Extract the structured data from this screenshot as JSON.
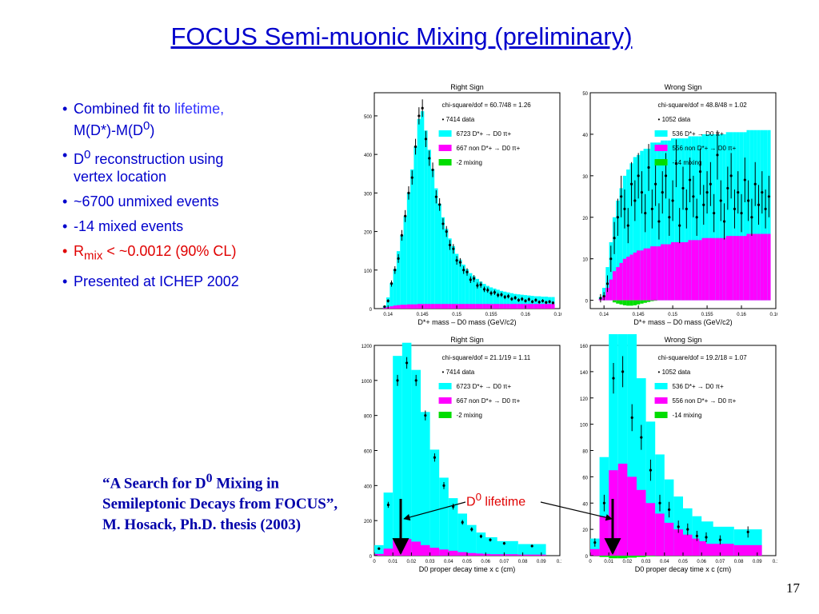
{
  "slide": {
    "title": "FOCUS Semi-muonic Mixing (preliminary)",
    "page_number": "17",
    "bullets": [
      {
        "pre": "Combined fit to ",
        "highlight": "lifetime,",
        "post": "",
        "line2": "M(D*)-M(D0)"
      },
      {
        "pre": "D0 reconstruction using",
        "highlight": "",
        "post": "",
        "line2": "vertex location"
      },
      {
        "pre": "~6700 unmixed events",
        "highlight": "",
        "post": "",
        "line2": ""
      },
      {
        "pre": "-14 mixed events",
        "highlight": "",
        "post": "",
        "line2": ""
      },
      {
        "pre": "Rmix < ~0.0012 (90% CL)",
        "highlight": "",
        "post": "",
        "line2": "",
        "red": true
      },
      {
        "pre": "Presented at ICHEP 2002",
        "highlight": "",
        "post": "",
        "line2": ""
      }
    ],
    "citation": "“A Search for D0 Mixing in Semileptonic Decays from FOCUS”, M. Hosack, Ph.D. thesis (2003)",
    "arrow_label": "D0 lifetime",
    "colors": {
      "title": "#0000cc",
      "text": "#0000cc",
      "highlight": "#3333ff",
      "red": "#e00000",
      "cyan": "#00ffff",
      "magenta": "#ff00ff",
      "green": "#00dd00"
    }
  },
  "chart_data": [
    {
      "type": "bar",
      "title": "Right Sign",
      "xlabel": "D*+ mass – D0 mass (GeV/c2)",
      "xlim": [
        0.138,
        0.165
      ],
      "ylim": [
        0,
        560
      ],
      "xticks": [
        "0.14",
        "0.145",
        "0.15",
        "0.155",
        "0.16",
        "0.165"
      ],
      "xtick_values": [
        0.14,
        0.145,
        0.15,
        0.155,
        0.16,
        0.165
      ],
      "yticks": [
        "0",
        "100",
        "200",
        "300",
        "400",
        "500"
      ],
      "ytick_values": [
        0,
        100,
        200,
        300,
        400,
        500
      ],
      "fit_label": "chi-square/dof = 60.7/48 = 1.26",
      "legend": [
        "• 7414 data",
        "6723 D*+ → D0 π+",
        "667 non D*+ → D0 π+",
        "-2 mixing"
      ],
      "x": [
        0.1395,
        0.14,
        0.1405,
        0.141,
        0.1415,
        0.142,
        0.1425,
        0.143,
        0.1435,
        0.144,
        0.1445,
        0.145,
        0.1455,
        0.146,
        0.1465,
        0.147,
        0.1475,
        0.148,
        0.1485,
        0.149,
        0.1495,
        0.15,
        0.1505,
        0.151,
        0.1515,
        0.152,
        0.1525,
        0.153,
        0.1535,
        0.154,
        0.1545,
        0.155,
        0.1555,
        0.156,
        0.1565,
        0.157,
        0.1575,
        0.158,
        0.1585,
        0.159,
        0.1595,
        0.16,
        0.1605,
        0.161,
        0.1615,
        0.162,
        0.1625,
        0.163,
        0.1635,
        0.164
      ],
      "series": [
        {
          "name": "6723 D*+ → D0 π+",
          "values": [
            5,
            25,
            60,
            95,
            140,
            180,
            230,
            290,
            350,
            410,
            480,
            500,
            450,
            400,
            350,
            300,
            260,
            225,
            195,
            170,
            150,
            130,
            115,
            102,
            90,
            80,
            72,
            65,
            58,
            52,
            47,
            43,
            40,
            37,
            34,
            32,
            30,
            28,
            26,
            25,
            24,
            23,
            22,
            21,
            20,
            20,
            19,
            19,
            18,
            18
          ]
        },
        {
          "name": "667 non D*+ → D0 π+",
          "values": [
            2,
            4,
            6,
            8,
            9,
            10,
            10,
            11,
            11,
            11,
            12,
            12,
            12,
            12,
            12,
            12,
            12,
            12,
            12,
            12,
            12,
            12,
            12,
            12,
            12,
            12,
            12,
            12,
            12,
            12,
            12,
            12,
            12,
            12,
            12,
            12,
            12,
            12,
            12,
            12,
            12,
            12,
            12,
            12,
            12,
            12,
            12,
            12,
            12,
            12
          ]
        },
        {
          "name": "7414 data",
          "values": [
            5,
            20,
            65,
            100,
            130,
            190,
            240,
            300,
            340,
            420,
            500,
            520,
            440,
            390,
            360,
            290,
            270,
            220,
            200,
            165,
            155,
            125,
            120,
            100,
            95,
            75,
            78,
            60,
            62,
            50,
            48,
            40,
            42,
            35,
            36,
            30,
            32,
            25,
            28,
            22,
            25,
            20,
            24,
            18,
            22,
            17,
            20,
            16,
            18,
            15
          ]
        }
      ]
    },
    {
      "type": "bar",
      "title": "Wrong Sign",
      "xlabel": "D*+ mass – D0 mass (GeV/c2)",
      "xlim": [
        0.138,
        0.165
      ],
      "ylim": [
        -2,
        50
      ],
      "xticks": [
        "0.14",
        "0.145",
        "0.15",
        "0.155",
        "0.16",
        "0.165"
      ],
      "xtick_values": [
        0.14,
        0.145,
        0.15,
        0.155,
        0.16,
        0.165
      ],
      "yticks": [
        "0",
        "10",
        "20",
        "30",
        "40",
        "50"
      ],
      "ytick_values": [
        0,
        10,
        20,
        30,
        40,
        50
      ],
      "fit_label": "chi-square/dof = 48.8/48 = 1.02",
      "legend": [
        "• 1052 data",
        "536 D*+ → D0 π+",
        "556 non D*+ → D0 π+",
        "-14 mixing"
      ],
      "x": [
        0.1395,
        0.14,
        0.1405,
        0.141,
        0.1415,
        0.142,
        0.1425,
        0.143,
        0.1435,
        0.144,
        0.1445,
        0.145,
        0.1455,
        0.146,
        0.1465,
        0.147,
        0.1475,
        0.148,
        0.1485,
        0.149,
        0.1495,
        0.15,
        0.1505,
        0.151,
        0.1515,
        0.152,
        0.1525,
        0.153,
        0.1535,
        0.154,
        0.1545,
        0.155,
        0.1555,
        0.156,
        0.1565,
        0.157,
        0.1575,
        0.158,
        0.1585,
        0.159,
        0.1595,
        0.16,
        0.1605,
        0.161,
        0.1615,
        0.162,
        0.1625,
        0.163,
        0.1635,
        0.164
      ],
      "series": [
        {
          "name": "536 D*+ → D0 π+",
          "values": [
            0.5,
            2,
            5,
            9,
            13,
            16,
            18,
            20,
            21,
            22,
            23,
            23,
            24,
            24,
            24,
            25,
            25,
            25,
            25,
            25,
            25,
            25,
            25,
            25,
            25,
            25,
            25,
            25,
            25,
            25,
            25,
            25,
            25,
            25,
            25,
            25,
            25,
            25,
            25,
            25,
            25,
            25,
            25,
            25,
            25,
            25,
            25,
            25,
            25,
            25
          ]
        },
        {
          "name": "556 non D*+ → D0 π+",
          "values": [
            0.3,
            1,
            3,
            5,
            7,
            8,
            9,
            10,
            10.5,
            11,
            11.5,
            12,
            12,
            12.5,
            12.5,
            13,
            13,
            13,
            13.5,
            13.5,
            13.5,
            14,
            14,
            14,
            14,
            14,
            14.5,
            14.5,
            14.5,
            14.5,
            15,
            15,
            15,
            15,
            15,
            15,
            15,
            15.5,
            15.5,
            15.5,
            15.5,
            15.5,
            15.5,
            16,
            16,
            16,
            16,
            16,
            16,
            16
          ]
        },
        {
          "name": "-14 mixing",
          "values": [
            0,
            0,
            0,
            0,
            -0.5,
            -0.8,
            -1,
            -1.2,
            -1.3,
            -1.3,
            -1.2,
            -1,
            -0.8,
            -0.6,
            -0.4,
            -0.2,
            -0.1,
            0,
            0,
            0,
            0,
            0,
            0,
            0,
            0,
            0,
            0,
            0,
            0,
            0,
            0,
            0,
            0,
            0,
            0,
            0,
            0,
            0,
            0,
            0,
            0,
            0,
            0,
            0,
            0,
            0,
            0,
            0,
            0,
            0
          ]
        },
        {
          "name": "1052 data",
          "values": [
            0.5,
            1,
            4,
            10,
            15,
            20,
            25,
            22,
            18,
            28,
            24,
            30,
            26,
            21,
            32,
            22,
            28,
            19,
            26,
            30,
            20,
            24,
            33,
            18,
            27,
            22,
            29,
            25,
            20,
            31,
            23,
            26,
            28,
            21,
            35,
            24,
            19,
            27,
            30,
            22,
            26,
            21,
            29,
            24,
            20,
            28,
            23,
            26,
            22,
            25
          ]
        }
      ]
    },
    {
      "type": "bar",
      "title": "Right Sign",
      "xlabel": "D0 proper decay time x c (cm)",
      "xlim": [
        0,
        0.1
      ],
      "ylim": [
        0,
        1200
      ],
      "xticks": [
        "0",
        "0.01",
        "0.02",
        "0.03",
        "0.04",
        "0.05",
        "0.06",
        "0.07",
        "0.08",
        "0.09",
        "0.1"
      ],
      "xtick_values": [
        0,
        0.01,
        0.02,
        0.03,
        0.04,
        0.05,
        0.06,
        0.07,
        0.08,
        0.09,
        0.1
      ],
      "yticks": [
        "0",
        "200",
        "400",
        "600",
        "800",
        "1000",
        "1200"
      ],
      "ytick_values": [
        0,
        200,
        400,
        600,
        800,
        1000,
        1200
      ],
      "fit_label": "chi-square/dof = 21.1/19 = 1.11",
      "legend": [
        "• 7414 data",
        "6723 D*+ → D0 π+",
        "667 non D*+ → D0 π+",
        "-2 mixing"
      ],
      "x": [
        0.0025,
        0.0075,
        0.0125,
        0.0175,
        0.0225,
        0.0275,
        0.0325,
        0.0375,
        0.0425,
        0.0475,
        0.0525,
        0.0575,
        0.0625,
        0.07,
        0.085
      ],
      "series": [
        {
          "name": "6723 D*+ → D0 π+",
          "values": [
            50,
            320,
            1050,
            1120,
            980,
            760,
            560,
            410,
            300,
            220,
            160,
            120,
            95,
            75,
            60
          ]
        },
        {
          "name": "667 non D*+ → D0 π+",
          "values": [
            10,
            40,
            90,
            95,
            80,
            60,
            45,
            35,
            28,
            20,
            15,
            12,
            10,
            8,
            6
          ]
        },
        {
          "name": "7414 data",
          "values": [
            40,
            290,
            1000,
            1100,
            1000,
            800,
            560,
            400,
            280,
            190,
            150,
            110,
            90,
            70,
            55
          ]
        }
      ]
    },
    {
      "type": "bar",
      "title": "Wrong Sign",
      "xlabel": "D0 proper decay time x c (cm)",
      "xlim": [
        0,
        0.1
      ],
      "ylim": [
        0,
        160
      ],
      "xticks": [
        "0",
        "0.01",
        "0.02",
        "0.03",
        "0.04",
        "0.05",
        "0.06",
        "0.07",
        "0.08",
        "0.09",
        "0.1"
      ],
      "xtick_values": [
        0,
        0.01,
        0.02,
        0.03,
        0.04,
        0.05,
        0.06,
        0.07,
        0.08,
        0.09,
        0.1
      ],
      "yticks": [
        "0",
        "20",
        "40",
        "60",
        "80",
        "100",
        "120",
        "140",
        "160"
      ],
      "ytick_values": [
        0,
        20,
        40,
        60,
        80,
        100,
        120,
        140,
        160
      ],
      "fit_label": "chi-square/dof = 19.2/18 = 1.07",
      "legend": [
        "• 1052 data",
        "536 D*+ → D0 π+",
        "556 non D*+ → D0 π+",
        "-14 mixing"
      ],
      "x": [
        0.0025,
        0.0075,
        0.0125,
        0.0175,
        0.0225,
        0.0275,
        0.0325,
        0.0375,
        0.0425,
        0.0475,
        0.0525,
        0.0575,
        0.0625,
        0.07,
        0.085
      ],
      "series": [
        {
          "name": "536 D*+ → D0 π+",
          "values": [
            8,
            45,
            130,
            135,
            110,
            85,
            62,
            45,
            33,
            25,
            20,
            17,
            15,
            13,
            12
          ]
        },
        {
          "name": "556 non D*+ → D0 π+",
          "values": [
            5,
            30,
            65,
            70,
            60,
            50,
            40,
            32,
            25,
            20,
            16,
            13,
            11,
            9,
            8
          ]
        },
        {
          "name": "-14 mixing",
          "values": [
            0,
            -1,
            -2,
            -2,
            -1.5,
            -1,
            -0.5,
            0,
            0,
            0,
            0,
            0,
            0,
            0,
            0
          ]
        },
        {
          "name": "1052 data",
          "values": [
            10,
            40,
            135,
            140,
            105,
            90,
            65,
            40,
            35,
            22,
            20,
            15,
            14,
            12,
            18
          ]
        }
      ]
    }
  ]
}
